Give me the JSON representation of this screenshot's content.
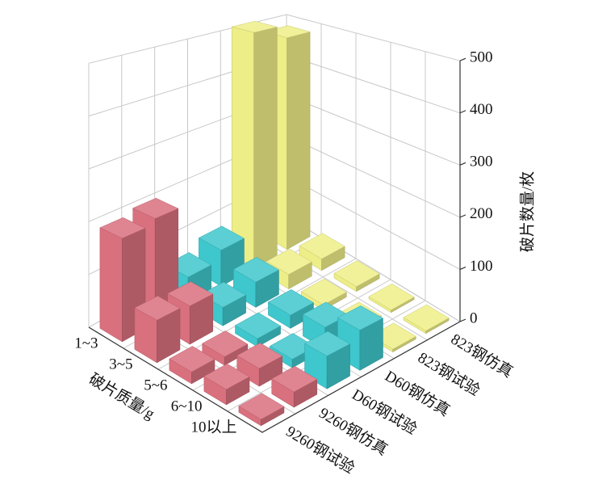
{
  "chart_data": {
    "type": "bar3d",
    "xlabel": "破片质量/g",
    "zlabel": "破片数量/枚",
    "categories": [
      "1~3",
      "3~5",
      "5~6",
      "6~10",
      "10以上"
    ],
    "series": [
      {
        "name": "9260钢试验",
        "color": "#d9707e",
        "values": [
          190,
          75,
          20,
          25,
          10
        ]
      },
      {
        "name": "9260钢仿真",
        "color": "#d9707e",
        "values": [
          200,
          70,
          15,
          30,
          25
        ]
      },
      {
        "name": "D60钢试验",
        "color": "#3ec7cc",
        "values": [
          55,
          35,
          15,
          15,
          55
        ]
      },
      {
        "name": "D60钢仿真",
        "color": "#3ec7cc",
        "values": [
          75,
          50,
          25,
          40,
          70
        ]
      },
      {
        "name": "823钢试验",
        "color": "#eeee88",
        "values": [
          510,
          30,
          10,
          5,
          5
        ]
      },
      {
        "name": "823钢仿真",
        "color": "#eeee88",
        "values": [
          480,
          25,
          10,
          5,
          5
        ]
      }
    ],
    "zlim": [
      0,
      500
    ],
    "zticks": [
      0,
      100,
      200,
      300,
      400,
      500
    ],
    "grid": true
  }
}
